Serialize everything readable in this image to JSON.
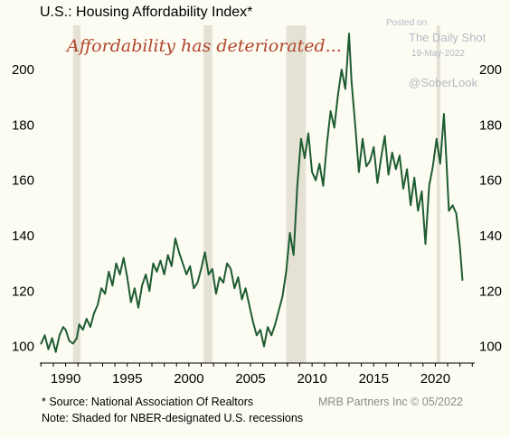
{
  "chart_data": {
    "type": "line",
    "title": "U.S.: Housing Affordability Index*",
    "annotation": "Affordability has deteriorated...",
    "footnote": "*  Source: National Association Of Realtors",
    "note": "Note: Shaded for NBER-designated U.S. recessions",
    "credit": "MRB Partners Inc © 05/2022",
    "watermark": {
      "posted_on": "Posted on",
      "site": "The Daily Shot",
      "date": "19-May-2022",
      "handle": "@SoberLook"
    },
    "xlim": [
      1987.9,
      2023.2
    ],
    "ylim": [
      94,
      216
    ],
    "x_ticks": [
      1990,
      1995,
      2000,
      2005,
      2010,
      2015,
      2020
    ],
    "x_tick_labels": [
      "1990",
      "1995",
      "2000",
      "2005",
      "2010",
      "2015",
      "2020"
    ],
    "y_ticks": [
      100,
      120,
      140,
      160,
      180,
      200
    ],
    "y_tick_labels": [
      "100",
      "120",
      "140",
      "160",
      "180",
      "200"
    ],
    "recessions": [
      [
        1990.6,
        1991.2
      ],
      [
        2001.2,
        2001.9
      ],
      [
        2007.9,
        2009.5
      ],
      [
        2020.1,
        2020.4
      ]
    ],
    "colors": {
      "line": "#1e5c31",
      "recession": "#e5e2d5",
      "background": "#fdfcf3"
    },
    "series": [
      {
        "x": [
          1988.0,
          1988.3,
          1988.6,
          1988.9,
          1989.2,
          1989.5,
          1989.8,
          1990.0,
          1990.3,
          1990.6,
          1990.9,
          1991.1,
          1991.4,
          1991.7,
          1992.0,
          1992.3,
          1992.6,
          1992.9,
          1993.2,
          1993.5,
          1993.8,
          1994.1,
          1994.4,
          1994.7,
          1995.0,
          1995.3,
          1995.6,
          1995.9,
          1996.2,
          1996.5,
          1996.8,
          1997.1,
          1997.4,
          1997.7,
          1998.0,
          1998.3,
          1998.6,
          1998.9,
          1999.2,
          1999.5,
          1999.8,
          2000.1,
          2000.4,
          2000.7,
          2001.0,
          2001.3,
          2001.6,
          2001.9,
          2002.2,
          2002.5,
          2002.8,
          2003.1,
          2003.4,
          2003.7,
          2004.0,
          2004.3,
          2004.6,
          2004.9,
          2005.2,
          2005.5,
          2005.8,
          2006.1,
          2006.4,
          2006.7,
          2007.0,
          2007.3,
          2007.6,
          2007.9,
          2008.2,
          2008.5,
          2008.8,
          2009.1,
          2009.4,
          2009.7,
          2010.0,
          2010.3,
          2010.6,
          2010.9,
          2011.2,
          2011.5,
          2011.8,
          2012.1,
          2012.4,
          2012.7,
          2013.0,
          2013.2,
          2013.5,
          2013.8,
          2014.1,
          2014.4,
          2014.7,
          2015.0,
          2015.3,
          2015.6,
          2015.9,
          2016.2,
          2016.5,
          2016.8,
          2017.1,
          2017.4,
          2017.7,
          2018.0,
          2018.3,
          2018.6,
          2018.9,
          2019.2,
          2019.5,
          2019.8,
          2020.1,
          2020.4,
          2020.7,
          2020.9,
          2021.1,
          2021.4,
          2021.7,
          2022.0,
          2022.2
        ],
        "values": [
          101,
          104,
          99,
          103,
          98,
          104,
          107,
          106,
          102,
          101,
          103,
          108,
          106,
          110,
          107,
          112,
          115,
          121,
          119,
          127,
          122,
          130,
          126,
          132,
          125,
          116,
          121,
          114,
          122,
          126,
          120,
          130,
          127,
          131,
          126,
          133,
          129,
          139,
          134,
          130,
          126,
          129,
          121,
          123,
          128,
          134,
          126,
          128,
          119,
          125,
          123,
          130,
          128,
          121,
          125,
          117,
          121,
          115,
          109,
          104,
          106,
          100,
          107,
          104,
          108,
          113,
          118,
          127,
          141,
          133,
          158,
          175,
          168,
          177,
          163,
          160,
          166,
          158,
          173,
          185,
          179,
          191,
          200,
          193,
          213,
          196,
          180,
          163,
          175,
          165,
          167,
          172,
          159,
          168,
          176,
          162,
          170,
          164,
          169,
          157,
          164,
          151,
          161,
          149,
          156,
          137,
          158,
          165,
          175,
          166,
          184,
          167,
          149,
          151,
          148,
          136,
          124
        ]
      }
    ]
  }
}
